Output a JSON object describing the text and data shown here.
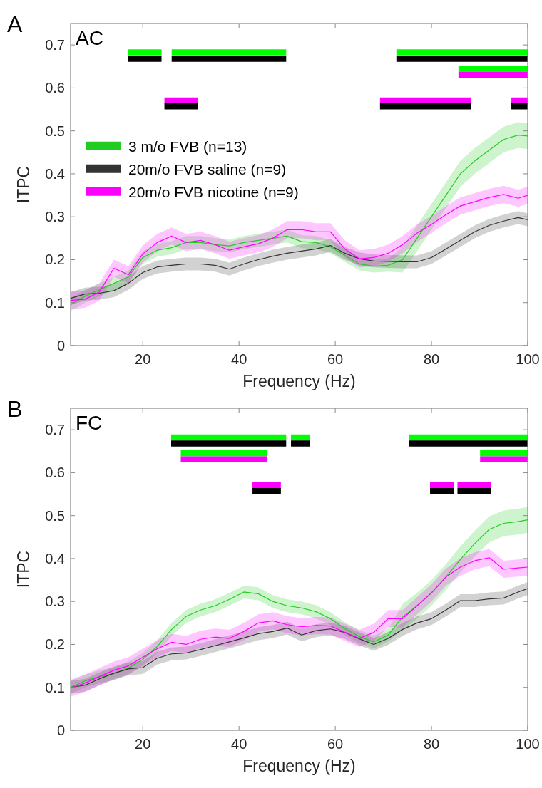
{
  "chart_data": [
    {
      "type": "line",
      "title": "AC",
      "annotations": [
        "A"
      ],
      "xlabel": "Frequency (Hz)",
      "ylabel": "ITPC",
      "xlim": [
        5,
        100
      ],
      "ylim": [
        0,
        0.75
      ],
      "xticks": [
        20,
        40,
        60,
        80,
        100
      ],
      "yticks": [
        0,
        0.1,
        0.2,
        0.3,
        0.4,
        0.5,
        0.6,
        0.7
      ],
      "grid": false,
      "legend": "left",
      "x": [
        5,
        8,
        11,
        14,
        17,
        20,
        23,
        26,
        29,
        32,
        35,
        38,
        41,
        44,
        47,
        50,
        53,
        56,
        59,
        62,
        65,
        68,
        71,
        74,
        77,
        80,
        83,
        86,
        89,
        92,
        95,
        98,
        100
      ],
      "series": [
        {
          "name": "3 m/o FVB (n=13)",
          "color": "#22cc22",
          "values": [
            0.095,
            0.115,
            0.13,
            0.145,
            0.16,
            0.205,
            0.222,
            0.228,
            0.24,
            0.24,
            0.235,
            0.232,
            0.24,
            0.245,
            0.25,
            0.255,
            0.242,
            0.24,
            0.23,
            0.21,
            0.19,
            0.185,
            0.187,
            0.2,
            0.25,
            0.3,
            0.35,
            0.4,
            0.43,
            0.455,
            0.48,
            0.49,
            0.488
          ],
          "lower": [
            0.08,
            0.1,
            0.115,
            0.13,
            0.145,
            0.19,
            0.207,
            0.213,
            0.225,
            0.225,
            0.22,
            0.217,
            0.225,
            0.23,
            0.235,
            0.24,
            0.227,
            0.225,
            0.215,
            0.195,
            0.175,
            0.17,
            0.172,
            0.17,
            0.22,
            0.27,
            0.32,
            0.37,
            0.4,
            0.425,
            0.45,
            0.46,
            0.458
          ],
          "upper": [
            0.11,
            0.13,
            0.145,
            0.16,
            0.175,
            0.22,
            0.237,
            0.243,
            0.255,
            0.255,
            0.25,
            0.247,
            0.255,
            0.26,
            0.265,
            0.27,
            0.257,
            0.255,
            0.245,
            0.225,
            0.205,
            0.2,
            0.202,
            0.23,
            0.28,
            0.33,
            0.38,
            0.43,
            0.46,
            0.485,
            0.51,
            0.52,
            0.518
          ]
        },
        {
          "name": "20m/o FVB saline (n=9)",
          "color": "#333333",
          "values": [
            0.11,
            0.12,
            0.122,
            0.128,
            0.145,
            0.17,
            0.183,
            0.187,
            0.19,
            0.19,
            0.187,
            0.178,
            0.19,
            0.2,
            0.208,
            0.215,
            0.22,
            0.225,
            0.233,
            0.215,
            0.202,
            0.197,
            0.196,
            0.195,
            0.195,
            0.205,
            0.225,
            0.245,
            0.265,
            0.28,
            0.29,
            0.298,
            0.293
          ],
          "lower": [
            0.095,
            0.105,
            0.107,
            0.113,
            0.13,
            0.155,
            0.168,
            0.172,
            0.175,
            0.175,
            0.172,
            0.163,
            0.175,
            0.185,
            0.193,
            0.2,
            0.205,
            0.21,
            0.218,
            0.2,
            0.187,
            0.182,
            0.181,
            0.18,
            0.18,
            0.19,
            0.21,
            0.23,
            0.25,
            0.265,
            0.275,
            0.283,
            0.278
          ],
          "upper": [
            0.125,
            0.135,
            0.137,
            0.143,
            0.16,
            0.185,
            0.198,
            0.202,
            0.205,
            0.205,
            0.202,
            0.193,
            0.205,
            0.215,
            0.223,
            0.23,
            0.235,
            0.24,
            0.248,
            0.23,
            0.217,
            0.212,
            0.211,
            0.21,
            0.21,
            0.22,
            0.24,
            0.26,
            0.28,
            0.295,
            0.305,
            0.313,
            0.308
          ]
        },
        {
          "name": "20m/o FVB nicotine (n=9)",
          "color": "#ff00ff",
          "values": [
            0.105,
            0.108,
            0.125,
            0.18,
            0.165,
            0.213,
            0.24,
            0.255,
            0.24,
            0.245,
            0.235,
            0.222,
            0.23,
            0.237,
            0.25,
            0.27,
            0.27,
            0.265,
            0.265,
            0.225,
            0.202,
            0.205,
            0.215,
            0.235,
            0.262,
            0.282,
            0.305,
            0.325,
            0.335,
            0.345,
            0.352,
            0.343,
            0.35
          ],
          "lower": [
            0.085,
            0.088,
            0.105,
            0.16,
            0.145,
            0.193,
            0.22,
            0.235,
            0.22,
            0.225,
            0.215,
            0.202,
            0.21,
            0.217,
            0.23,
            0.25,
            0.25,
            0.245,
            0.245,
            0.205,
            0.182,
            0.185,
            0.195,
            0.215,
            0.242,
            0.262,
            0.285,
            0.305,
            0.315,
            0.325,
            0.332,
            0.323,
            0.33
          ],
          "upper": [
            0.125,
            0.128,
            0.145,
            0.2,
            0.185,
            0.233,
            0.26,
            0.275,
            0.26,
            0.265,
            0.255,
            0.242,
            0.25,
            0.257,
            0.27,
            0.29,
            0.29,
            0.285,
            0.285,
            0.245,
            0.222,
            0.225,
            0.235,
            0.255,
            0.282,
            0.302,
            0.325,
            0.345,
            0.355,
            0.365,
            0.372,
            0.363,
            0.37
          ]
        },
        {
          "color": "#00ff00",
          "x": [
            17,
            23.9,
            25,
            26,
            49.8,
            60,
            72.7,
            100
          ],
          "values": [
            0.683,
            0.683,
            null,
            0.683,
            0.683,
            null,
            0.683,
            0.683
          ]
        },
        {
          "color": "#000000",
          "x": [
            17,
            23.9,
            25,
            26,
            49.8,
            60,
            72.7,
            100
          ],
          "values": [
            0.668,
            0.668,
            null,
            0.668,
            0.668,
            null,
            0.668,
            0.668
          ]
        },
        {
          "color": "#00ff00",
          "x": [
            85.6,
            100
          ],
          "values": [
            0.645,
            0.645
          ]
        },
        {
          "color": "#ff00ff",
          "x": [
            85.6,
            100
          ],
          "values": [
            0.631,
            0.631
          ]
        },
        {
          "color": "#ff00ff",
          "x": [
            24.5,
            31.4,
            50,
            69.3,
            88.2,
            92,
            96.6,
            100
          ],
          "values": [
            0.571,
            0.571,
            null,
            0.571,
            0.571,
            null,
            0.571,
            0.571
          ]
        },
        {
          "color": "#000000",
          "x": [
            24.5,
            31.4,
            50,
            69.3,
            88.2,
            92,
            96.6,
            100
          ],
          "values": [
            0.557,
            0.557,
            null,
            0.557,
            0.557,
            null,
            0.557,
            0.557
          ]
        }
      ]
    },
    {
      "type": "line",
      "title": "FC",
      "annotations": [
        "B"
      ],
      "xlabel": "Frequency (Hz)",
      "ylabel": "ITPC",
      "xlim": [
        5,
        100
      ],
      "ylim": [
        0,
        0.75
      ],
      "xticks": [
        20,
        40,
        60,
        80,
        100
      ],
      "yticks": [
        0,
        0.1,
        0.2,
        0.3,
        0.4,
        0.5,
        0.6,
        0.7
      ],
      "grid": false,
      "x": [
        5,
        8,
        11,
        14,
        17,
        20,
        23,
        26,
        29,
        32,
        35,
        38,
        41,
        44,
        47,
        50,
        53,
        56,
        59,
        62,
        65,
        68,
        71,
        74,
        77,
        80,
        83,
        86,
        89,
        92,
        95,
        98,
        100
      ],
      "series": [
        {
          "color": "#22cc22",
          "values": [
            0.1,
            0.115,
            0.125,
            0.132,
            0.145,
            0.165,
            0.195,
            0.235,
            0.265,
            0.28,
            0.29,
            0.305,
            0.322,
            0.318,
            0.3,
            0.29,
            0.285,
            0.276,
            0.26,
            0.237,
            0.218,
            0.206,
            0.222,
            0.264,
            0.29,
            0.32,
            0.357,
            0.398,
            0.435,
            0.468,
            0.482,
            0.486,
            0.49
          ],
          "lower": [
            0.085,
            0.1,
            0.11,
            0.117,
            0.13,
            0.15,
            0.18,
            0.22,
            0.25,
            0.265,
            0.275,
            0.29,
            0.307,
            0.303,
            0.285,
            0.275,
            0.27,
            0.261,
            0.245,
            0.222,
            0.203,
            0.191,
            0.207,
            0.234,
            0.26,
            0.29,
            0.327,
            0.368,
            0.405,
            0.438,
            0.452,
            0.456,
            0.46
          ],
          "upper": [
            0.115,
            0.13,
            0.14,
            0.147,
            0.16,
            0.18,
            0.21,
            0.25,
            0.28,
            0.295,
            0.305,
            0.32,
            0.337,
            0.333,
            0.315,
            0.305,
            0.3,
            0.291,
            0.275,
            0.252,
            0.233,
            0.221,
            0.237,
            0.294,
            0.32,
            0.35,
            0.387,
            0.428,
            0.465,
            0.498,
            0.512,
            0.516,
            0.52
          ]
        },
        {
          "color": "#333333",
          "values": [
            0.1,
            0.105,
            0.12,
            0.133,
            0.143,
            0.146,
            0.168,
            0.178,
            0.18,
            0.188,
            0.197,
            0.206,
            0.215,
            0.225,
            0.23,
            0.238,
            0.222,
            0.232,
            0.236,
            0.228,
            0.213,
            0.2,
            0.214,
            0.235,
            0.25,
            0.26,
            0.28,
            0.302,
            0.302,
            0.306,
            0.308,
            0.322,
            0.33
          ],
          "lower": [
            0.085,
            0.09,
            0.105,
            0.118,
            0.128,
            0.131,
            0.153,
            0.163,
            0.165,
            0.173,
            0.182,
            0.191,
            0.2,
            0.21,
            0.215,
            0.223,
            0.207,
            0.217,
            0.221,
            0.213,
            0.198,
            0.185,
            0.199,
            0.22,
            0.235,
            0.245,
            0.265,
            0.287,
            0.287,
            0.291,
            0.293,
            0.307,
            0.315
          ],
          "upper": [
            0.115,
            0.12,
            0.135,
            0.148,
            0.158,
            0.161,
            0.183,
            0.193,
            0.195,
            0.203,
            0.212,
            0.221,
            0.23,
            0.24,
            0.245,
            0.253,
            0.237,
            0.247,
            0.251,
            0.243,
            0.228,
            0.215,
            0.229,
            0.25,
            0.265,
            0.275,
            0.295,
            0.317,
            0.317,
            0.321,
            0.323,
            0.337,
            0.345
          ]
        },
        {
          "color": "#ff00ff",
          "values": [
            0.098,
            0.11,
            0.125,
            0.14,
            0.15,
            0.17,
            0.19,
            0.205,
            0.2,
            0.212,
            0.217,
            0.214,
            0.23,
            0.25,
            0.255,
            0.246,
            0.241,
            0.244,
            0.243,
            0.228,
            0.214,
            0.228,
            0.26,
            0.26,
            0.29,
            0.32,
            0.357,
            0.38,
            0.395,
            0.402,
            0.375,
            0.378,
            0.38
          ],
          "lower": [
            0.078,
            0.09,
            0.105,
            0.12,
            0.13,
            0.15,
            0.17,
            0.185,
            0.18,
            0.192,
            0.197,
            0.194,
            0.21,
            0.23,
            0.235,
            0.226,
            0.221,
            0.224,
            0.223,
            0.208,
            0.194,
            0.208,
            0.24,
            0.24,
            0.27,
            0.3,
            0.337,
            0.36,
            0.375,
            0.382,
            0.355,
            0.358,
            0.36
          ],
          "upper": [
            0.118,
            0.13,
            0.145,
            0.16,
            0.17,
            0.19,
            0.21,
            0.225,
            0.22,
            0.232,
            0.237,
            0.234,
            0.25,
            0.27,
            0.275,
            0.266,
            0.261,
            0.264,
            0.263,
            0.248,
            0.234,
            0.248,
            0.28,
            0.28,
            0.31,
            0.34,
            0.377,
            0.4,
            0.415,
            0.422,
            0.395,
            0.398,
            0.4
          ]
        },
        {
          "color": "#00ff00",
          "x": [
            25.9,
            49.8,
            50.3,
            50.8,
            54.8,
            65,
            75.3,
            100
          ],
          "values": [
            0.682,
            0.682,
            null,
            0.682,
            0.682,
            null,
            0.682,
            0.682
          ]
        },
        {
          "color": "#000000",
          "x": [
            25.9,
            49.8,
            50.3,
            50.8,
            54.8,
            65,
            75.3,
            100
          ],
          "values": [
            0.668,
            0.668,
            null,
            0.668,
            0.668,
            null,
            0.668,
            0.668
          ]
        },
        {
          "color": "#00ff00",
          "x": [
            27.9,
            45.8,
            70,
            90.1,
            100
          ],
          "values": [
            0.645,
            0.645,
            null,
            0.645,
            0.645
          ]
        },
        {
          "color": "#ff00ff",
          "x": [
            27.9,
            45.8,
            70,
            90.1,
            100
          ],
          "values": [
            0.631,
            0.631,
            null,
            0.631,
            0.631
          ]
        },
        {
          "color": "#ff00ff",
          "x": [
            42.8,
            48.7,
            60,
            79.7,
            84.6,
            85,
            85.4,
            92.3
          ],
          "values": [
            0.571,
            0.571,
            null,
            0.571,
            0.571,
            null,
            0.571,
            0.571
          ]
        },
        {
          "color": "#000000",
          "x": [
            42.8,
            48.7,
            60,
            79.7,
            84.6,
            85,
            85.4,
            92.3
          ],
          "values": [
            0.557,
            0.557,
            null,
            0.557,
            0.557,
            null,
            0.557,
            0.557
          ]
        }
      ]
    }
  ]
}
